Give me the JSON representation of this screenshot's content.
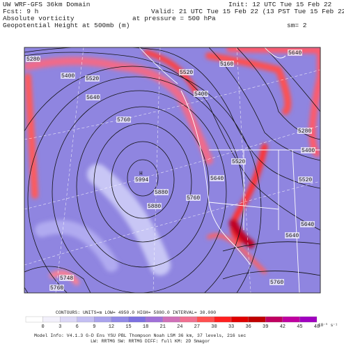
{
  "header": {
    "left": [
      "UW WRF-GFS 36km Domain",
      "Fcst:     9 h",
      "Absolute vorticity",
      "Geopotential Height at 500mb (m)"
    ],
    "right": [
      "Init: 12 UTC Tue 15 Feb 22",
      "Valid: 21 UTC Tue 15 Feb 22 (13 PST Tue 15 Feb 22)",
      "at pressure =   500 hPa",
      "sm= 2"
    ]
  },
  "map": {
    "high_marker": "H",
    "contour_labels": [
      "5280",
      "5400",
      "5520",
      "5640",
      "5760",
      "5994",
      "5880",
      "5880",
      "5760",
      "5640",
      "5520",
      "5520",
      "5400",
      "5160",
      "5640",
      "5280",
      "5400",
      "5520",
      "5640",
      "5640",
      "5760",
      "5748",
      "5760"
    ]
  },
  "contours_line": "CONTOURS:  UNITS=m   LOW=  4950.0     HIGH=  5880.0     INTERVAL=   30.000",
  "colorbar": {
    "ticks": [
      0,
      3,
      6,
      9,
      12,
      15,
      18,
      21,
      24,
      27,
      30,
      33,
      36,
      39,
      42,
      45,
      48
    ],
    "unit": "10⁻⁵ s⁻¹"
  },
  "footer": [
    "Model Info: V4.1.3   G-D Ens YSU PBL  Thompson    Noah LSM   36 km,  37 levels,  216 sec",
    "LW: RRTMG  SW: RRTMG    DIFF: full   KM: 2D Smagor"
  ]
}
